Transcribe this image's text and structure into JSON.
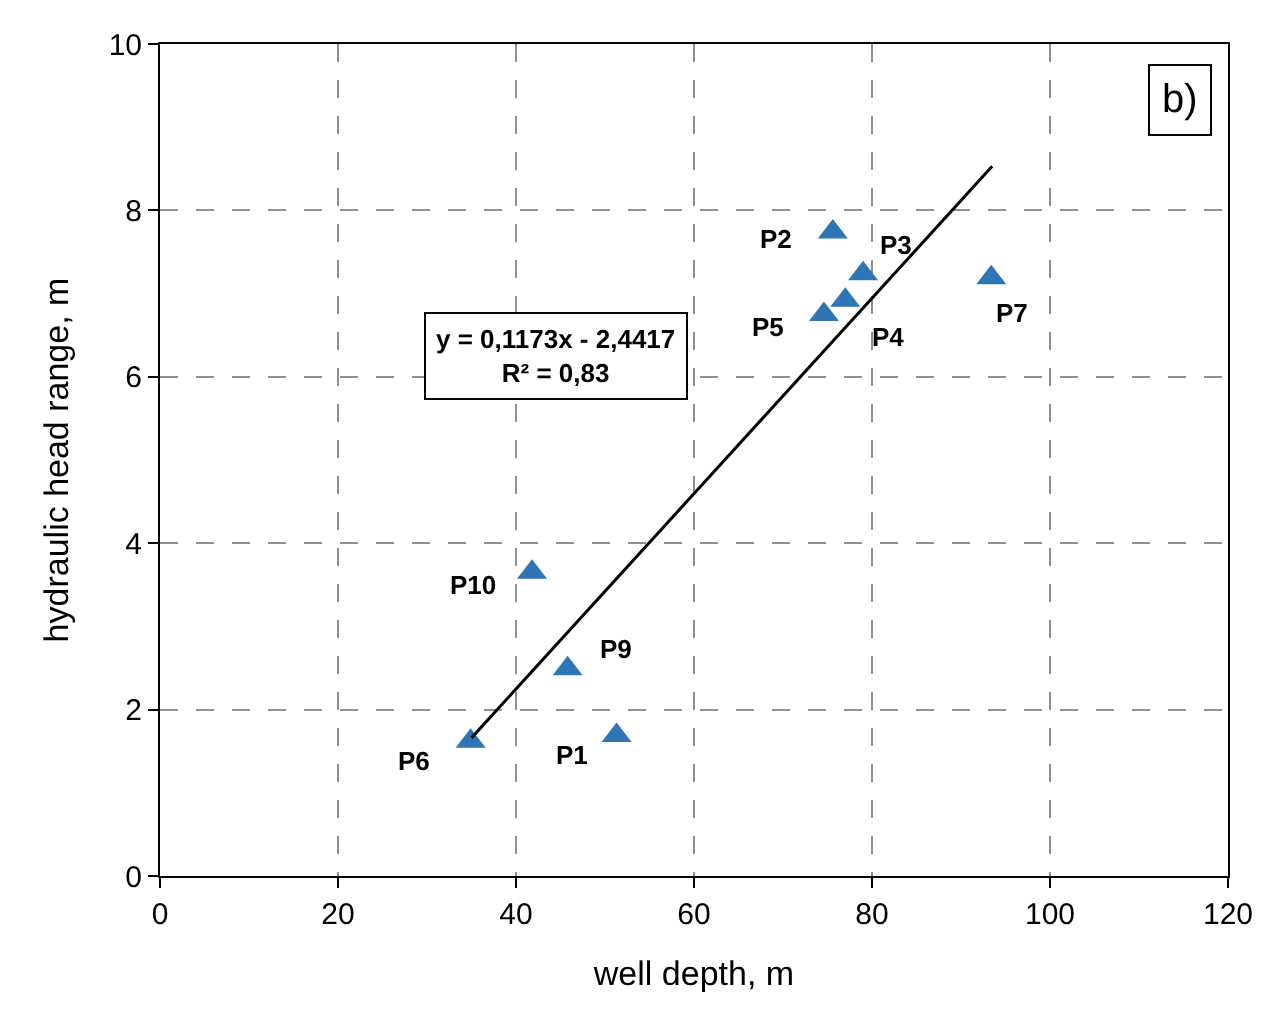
{
  "chart_data": {
    "type": "scatter",
    "xlabel": "well depth, m",
    "ylabel": "hydraulic head range, m",
    "xlim": [
      0,
      120
    ],
    "xticks": [
      0,
      20,
      40,
      60,
      80,
      100,
      120
    ],
    "ylim": [
      0,
      10
    ],
    "yticks": [
      0,
      2,
      4,
      6,
      8,
      10
    ],
    "grid": true,
    "marker": "triangle",
    "series": [
      {
        "color": "#2e75b6",
        "x": [
          51.3,
          75.6,
          79.0,
          77.0,
          74.6,
          34.9,
          93.4,
          45.8,
          41.8
        ],
        "values": [
          1.69,
          7.74,
          7.24,
          6.92,
          6.75,
          1.62,
          7.19,
          2.49,
          3.65
        ]
      },
      {
        "type": "line",
        "color": "#000000",
        "marker": "none",
        "line_style": "solid",
        "x": [
          35,
          93.5
        ],
        "values": [
          1.66,
          8.53
        ]
      }
    ],
    "annotations": [
      "b)",
      "y = 0,1173x - 2,4417\nR² = 0,83",
      {
        "text": "P1",
        "x": 51.3,
        "y": 1.69
      },
      {
        "text": "P2",
        "x": 75.6,
        "y": 7.74
      },
      {
        "text": "P3",
        "x": 79.0,
        "y": 7.24
      },
      {
        "text": "P4",
        "x": 77.0,
        "y": 6.92
      },
      {
        "text": "P5",
        "x": 74.6,
        "y": 6.75
      },
      {
        "text": "P6",
        "x": 34.9,
        "y": 1.62
      },
      {
        "text": "P7",
        "x": 93.4,
        "y": 7.19
      },
      {
        "text": "P9",
        "x": 45.8,
        "y": 2.49
      },
      {
        "text": "P10",
        "x": 41.8,
        "y": 3.65
      }
    ]
  }
}
